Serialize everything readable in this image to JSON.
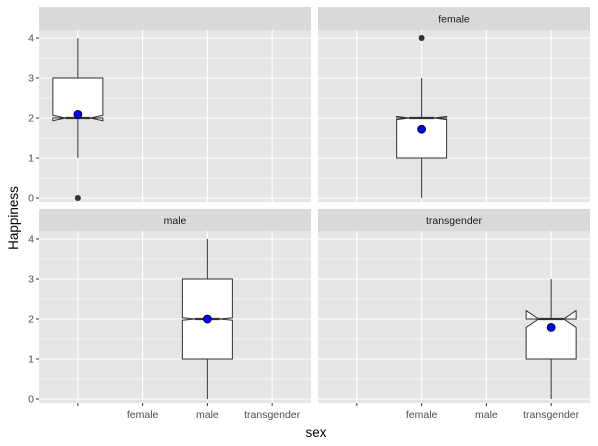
{
  "chart_data": {
    "type": "boxplot",
    "xlabel": "sex",
    "ylabel": "Happiness",
    "x_categories": [
      "",
      "female",
      "male",
      "transgender"
    ],
    "y_ticks": [
      "0",
      "1",
      "2",
      "3",
      "4"
    ],
    "ylim": [
      -0.1,
      4.2
    ],
    "notched": true,
    "grid": true,
    "legend": "none",
    "facet_layout": "2x2",
    "colors": {
      "panel_bg": "#e5e5e5",
      "strip_bg": "#d9d9d9",
      "grid": "#ffffff",
      "box_fill": "#ffffff",
      "box_line": "#333333",
      "outlier": "#333333",
      "mean_point": "#0000ff"
    },
    "panels": [
      {
        "strip_label": "",
        "x_category": "",
        "box": {
          "min": 1,
          "q1": 2,
          "median": 2,
          "q3": 3,
          "max": 4,
          "notch_low": 1.93,
          "notch_high": 2.07,
          "mean": 2.09
        },
        "outliers": [
          0
        ]
      },
      {
        "strip_label": "female",
        "x_category": "female",
        "box": {
          "min": 0,
          "q1": 1,
          "median": 2,
          "q3": 2,
          "max": 3,
          "notch_low": 1.96,
          "notch_high": 2.04,
          "mean": 1.72
        },
        "outliers": [
          4
        ]
      },
      {
        "strip_label": "male",
        "x_category": "male",
        "box": {
          "min": 0,
          "q1": 1,
          "median": 2,
          "q3": 3,
          "max": 4,
          "notch_low": 1.97,
          "notch_high": 2.03,
          "mean": 2.0
        },
        "outliers": []
      },
      {
        "strip_label": "transgender",
        "x_category": "transgender",
        "box": {
          "min": 0,
          "q1": 1,
          "median": 2,
          "q3": 2,
          "max": 3,
          "notch_low": 1.79,
          "notch_high": 2.21,
          "mean": 1.79
        },
        "outliers": []
      }
    ]
  }
}
